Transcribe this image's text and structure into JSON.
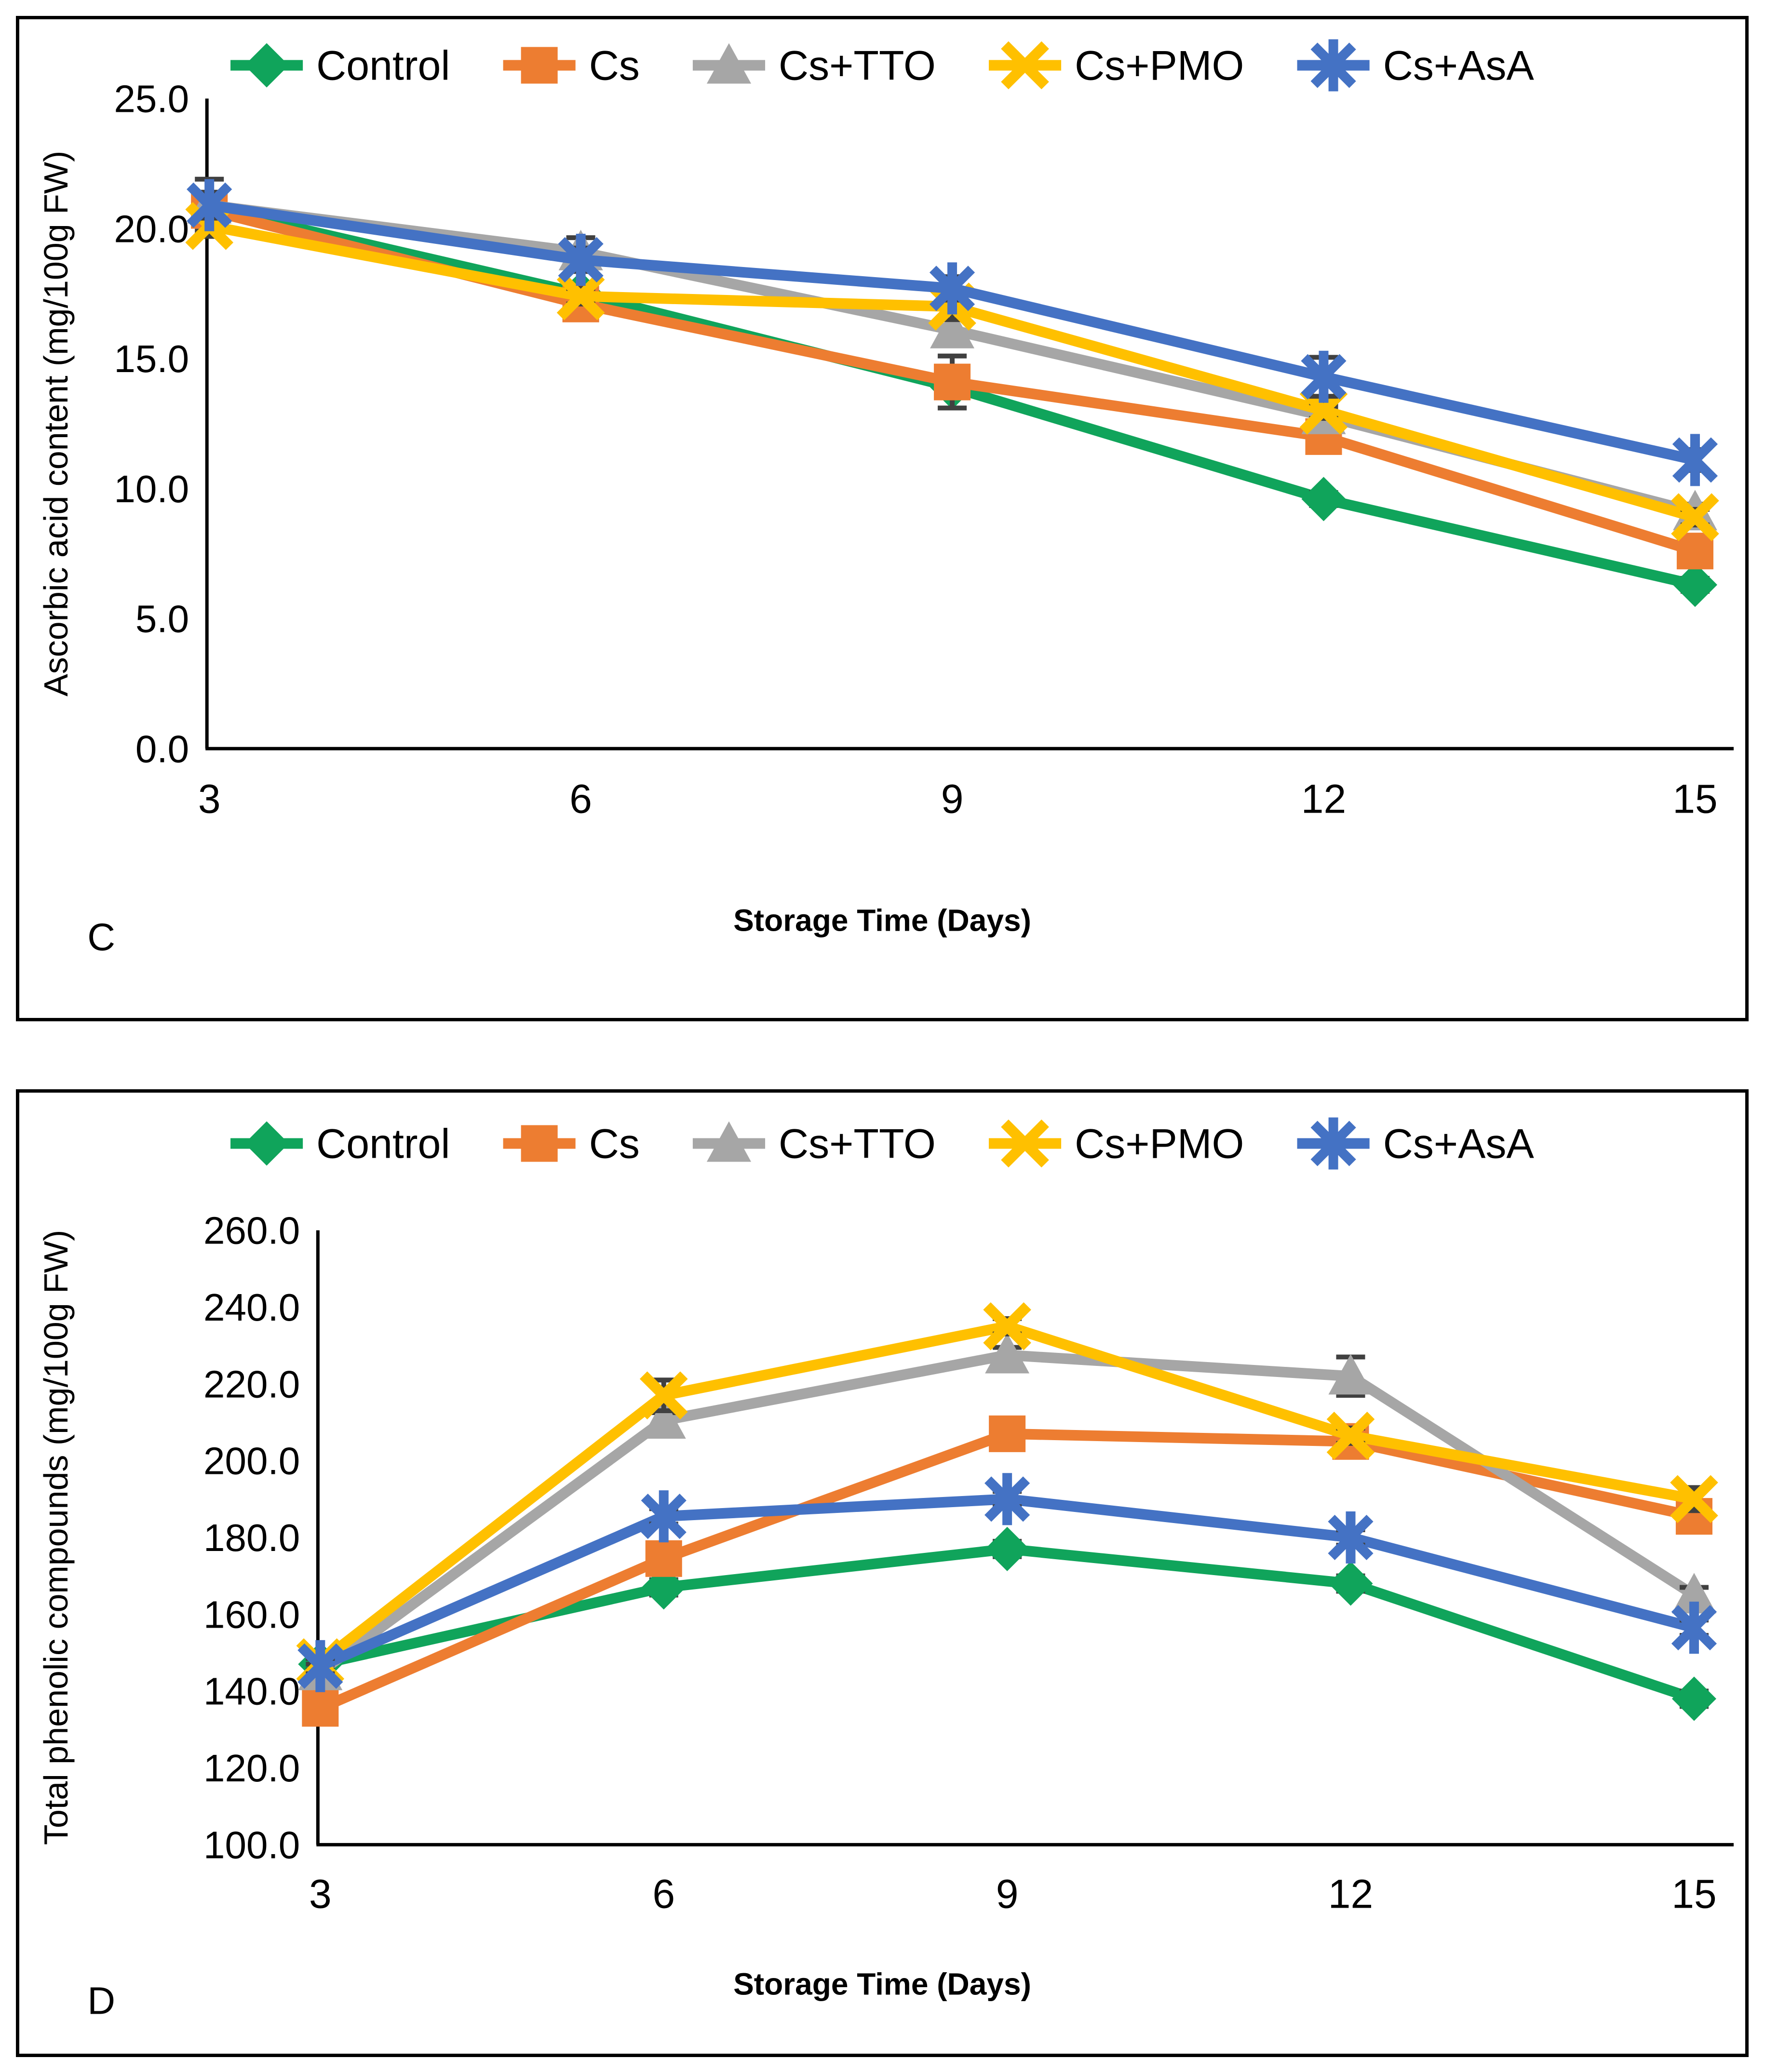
{
  "accent_colors": {
    "control_green": "#10A45B",
    "cs_orange": "#ED7D31",
    "cs_tto_gray": "#A6A6A6",
    "cs_pmo_yellow": "#FFC000",
    "cs_asa_blue": "#4472C4",
    "error_bar": "#404040",
    "axis": "#000000"
  },
  "chart_data": [
    {
      "panel_label": "C",
      "type": "line",
      "x": [
        3,
        6,
        9,
        12,
        15
      ],
      "xlabel": "Storage Time (Days)",
      "ylabel": "Ascorbic acid content (mg/100g FW)",
      "ylim": [
        0,
        25
      ],
      "ytick_step": 5,
      "grid": false,
      "legend_position": "top",
      "series": [
        {
          "name": "Control",
          "marker": "diamond",
          "color": "#10A45B",
          "values": [
            20.8,
            17.5,
            13.9,
            9.6,
            6.3
          ],
          "errors": [
            0.3,
            0.3,
            0.3,
            0.25,
            0.25
          ]
        },
        {
          "name": "Cs",
          "marker": "square",
          "color": "#ED7D31",
          "values": [
            20.7,
            17.1,
            14.1,
            12.0,
            7.6
          ],
          "errors": [
            0.3,
            0.5,
            1.0,
            0.3,
            0.3
          ]
        },
        {
          "name": "Cs+TTO",
          "marker": "triangle",
          "color": "#A6A6A6",
          "values": [
            20.9,
            19.1,
            16.1,
            12.8,
            9.1
          ],
          "errors": [
            1.0,
            0.55,
            0.5,
            0.35,
            0.3
          ]
        },
        {
          "name": "Cs+PMO",
          "marker": "x",
          "color": "#FFC000",
          "values": [
            20.1,
            17.4,
            17.0,
            13.0,
            8.9
          ],
          "errors": [
            0.4,
            0.3,
            0.5,
            0.3,
            0.3
          ]
        },
        {
          "name": "Cs+AsA",
          "marker": "asterisk",
          "color": "#4472C4",
          "values": [
            20.9,
            18.8,
            17.7,
            14.3,
            11.1
          ],
          "errors": [
            0.5,
            0.45,
            0.45,
            0.75,
            0.4
          ]
        }
      ]
    },
    {
      "panel_label": "D",
      "type": "line",
      "x": [
        3,
        6,
        9,
        12,
        15
      ],
      "xlabel": "Storage Time (Days)",
      "ylabel": "Total phenolic compounds (mg/100g FW)",
      "ylim": [
        100,
        260
      ],
      "ytick_step": 20,
      "grid": false,
      "legend_position": "top",
      "series": [
        {
          "name": "Control",
          "marker": "diamond",
          "color": "#10A45B",
          "values": [
            147.0,
            167.0,
            177.0,
            168.0,
            138.0
          ],
          "errors": [
            2,
            2,
            2,
            2,
            2
          ]
        },
        {
          "name": "Cs",
          "marker": "square",
          "color": "#ED7D31",
          "values": [
            135.5,
            174.5,
            207.0,
            205.0,
            185.5
          ],
          "errors": [
            2,
            4,
            2,
            2,
            3
          ]
        },
        {
          "name": "Cs+TTO",
          "marker": "triangle",
          "color": "#A6A6A6",
          "values": [
            145.0,
            210.5,
            227.5,
            222.0,
            165.0
          ],
          "errors": [
            2,
            2,
            2,
            5,
            2
          ]
        },
        {
          "name": "Cs+PMO",
          "marker": "x",
          "color": "#FFC000",
          "values": [
            147.5,
            217.0,
            235.0,
            206.5,
            190.0
          ],
          "errors": [
            2,
            4,
            2,
            2,
            3
          ]
        },
        {
          "name": "Cs+AsA",
          "marker": "asterisk",
          "color": "#4472C4",
          "values": [
            146.5,
            185.5,
            190.0,
            180.0,
            156.5
          ],
          "errors": [
            2,
            2,
            2,
            2,
            2
          ]
        }
      ]
    }
  ]
}
